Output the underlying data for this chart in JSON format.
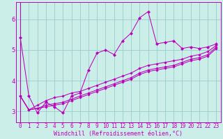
{
  "xlabel": "Windchill (Refroidissement éolien,°C)",
  "bg_color": "#cceee8",
  "line_color": "#bb00bb",
  "grid_color": "#99cccc",
  "spine_color": "#bb00bb",
  "xlim": [
    -0.5,
    23.5
  ],
  "ylim": [
    2.65,
    6.55
  ],
  "yticks": [
    3,
    4,
    5,
    6
  ],
  "xticks": [
    0,
    1,
    2,
    3,
    4,
    5,
    6,
    7,
    8,
    9,
    10,
    11,
    12,
    13,
    14,
    15,
    16,
    17,
    18,
    19,
    20,
    21,
    22,
    23
  ],
  "series": [
    [
      5.4,
      3.5,
      2.95,
      3.3,
      3.15,
      2.95,
      3.5,
      3.6,
      4.35,
      4.9,
      5.0,
      4.85,
      5.3,
      5.55,
      6.05,
      6.25,
      5.2,
      5.25,
      5.3,
      5.05,
      5.1,
      5.05,
      5.1,
      5.2
    ],
    [
      3.5,
      3.05,
      3.2,
      3.35,
      3.45,
      3.5,
      3.6,
      3.65,
      3.75,
      3.85,
      3.95,
      4.05,
      4.15,
      4.25,
      4.4,
      4.5,
      4.55,
      4.6,
      4.65,
      4.7,
      4.8,
      4.85,
      4.95,
      5.15
    ],
    [
      3.5,
      3.05,
      3.1,
      3.2,
      3.25,
      3.3,
      3.4,
      3.5,
      3.6,
      3.7,
      3.8,
      3.9,
      4.0,
      4.1,
      4.25,
      4.35,
      4.4,
      4.45,
      4.5,
      4.6,
      4.7,
      4.75,
      4.85,
      5.1
    ],
    [
      3.5,
      3.05,
      3.1,
      3.15,
      3.2,
      3.25,
      3.35,
      3.45,
      3.55,
      3.65,
      3.75,
      3.85,
      3.95,
      4.05,
      4.2,
      4.3,
      4.35,
      4.4,
      4.45,
      4.55,
      4.65,
      4.7,
      4.8,
      5.05
    ]
  ],
  "marker_size_main": 2.2,
  "marker_size_trend": 1.8,
  "linewidth": 0.75,
  "tick_fontsize": 5.5,
  "xlabel_fontsize": 6.0
}
